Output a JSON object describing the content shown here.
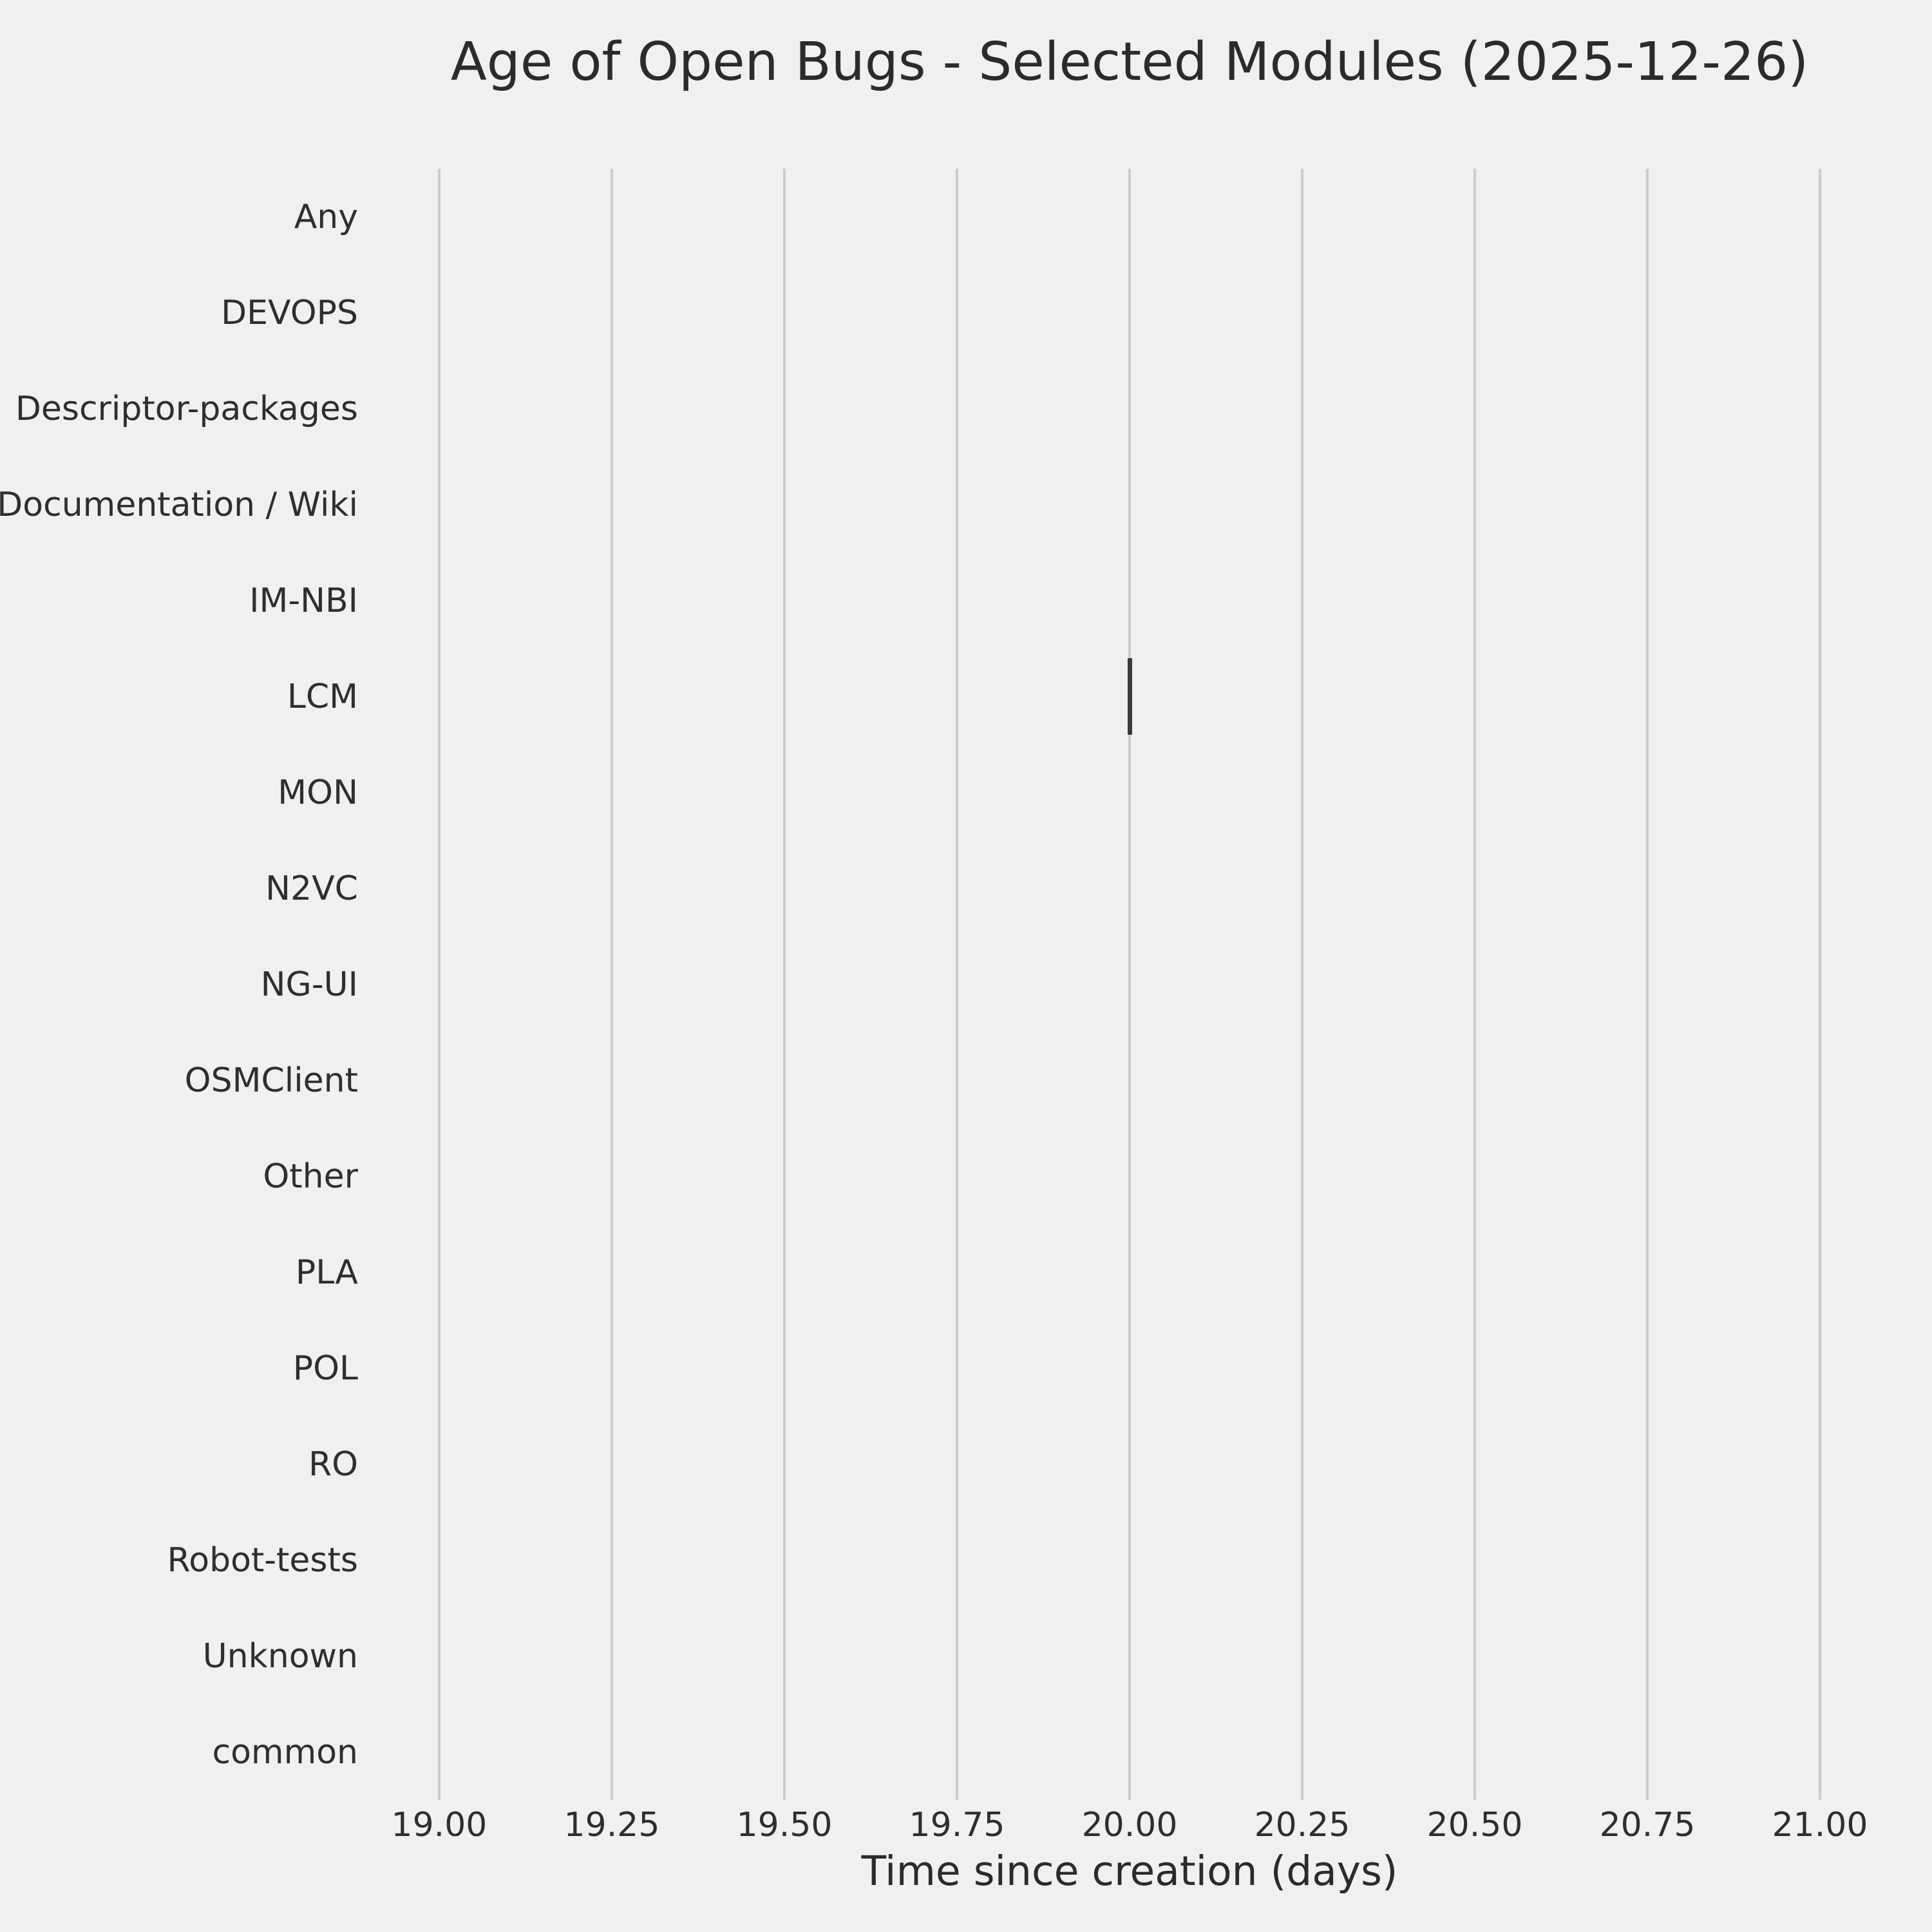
{
  "title": "Age of Open Bugs - Selected Modules (2025-12-26)",
  "chart_data": {
    "type": "boxplot",
    "orientation": "horizontal",
    "title": "Age of Open Bugs - Selected Modules (2025-12-26)",
    "xlabel": "Time since creation (days)",
    "ylabel": "",
    "categories": [
      "Any",
      "DEVOPS",
      "Descriptor-packages",
      "Documentation / Wiki",
      "IM-NBI",
      "LCM",
      "MON",
      "N2VC",
      "NG-UI",
      "OSMClient",
      "Other",
      "PLA",
      "POL",
      "RO",
      "Robot-tests",
      "Unknown",
      "common"
    ],
    "rows": [
      {
        "label": "Any",
        "values": []
      },
      {
        "label": "DEVOPS",
        "values": []
      },
      {
        "label": "Descriptor-packages",
        "values": []
      },
      {
        "label": "Documentation / Wiki",
        "values": []
      },
      {
        "label": "IM-NBI",
        "values": []
      },
      {
        "label": "LCM",
        "values": [
          20.0
        ],
        "median": 20.0
      },
      {
        "label": "MON",
        "values": []
      },
      {
        "label": "N2VC",
        "values": []
      },
      {
        "label": "NG-UI",
        "values": []
      },
      {
        "label": "OSMClient",
        "values": []
      },
      {
        "label": "Other",
        "values": []
      },
      {
        "label": "PLA",
        "values": []
      },
      {
        "label": "POL",
        "values": []
      },
      {
        "label": "RO",
        "values": []
      },
      {
        "label": "Robot-tests",
        "values": []
      },
      {
        "label": "Unknown",
        "values": []
      },
      {
        "label": "common",
        "values": []
      }
    ],
    "xticks": [
      {
        "value": 19.0,
        "label": "19.00"
      },
      {
        "value": 19.25,
        "label": "19.25"
      },
      {
        "value": 19.5,
        "label": "19.50"
      },
      {
        "value": 19.75,
        "label": "19.75"
      },
      {
        "value": 20.0,
        "label": "20.00"
      },
      {
        "value": 20.25,
        "label": "20.25"
      },
      {
        "value": 20.5,
        "label": "20.50"
      },
      {
        "value": 20.75,
        "label": "20.75"
      },
      {
        "value": 21.0,
        "label": "21.00"
      }
    ],
    "xlim": [
      18.9422,
      21.0578
    ],
    "grid": "vertical-only",
    "legend": "none"
  },
  "colors": {
    "background": "#f0f0f0",
    "gridline": "#cbcbcb",
    "box": "#3a3a3a",
    "text": "#2b2b2b"
  }
}
